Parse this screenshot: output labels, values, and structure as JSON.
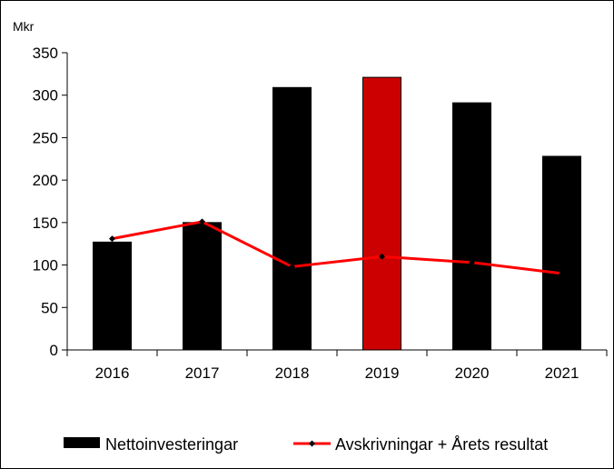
{
  "chart_data": {
    "type": "bar",
    "unit_label": "Mkr",
    "categories": [
      "2016",
      "2017",
      "2018",
      "2019",
      "2020",
      "2021"
    ],
    "ylim": [
      0,
      350
    ],
    "yticks": [
      0,
      50,
      100,
      150,
      200,
      250,
      300,
      350
    ],
    "grid": false,
    "legend_position": "bottom",
    "series": [
      {
        "name": "Nettoinvesteringar",
        "kind": "bar",
        "values": [
          127,
          150,
          309,
          321,
          291,
          228
        ],
        "color": "#000000",
        "highlight_index": 3,
        "highlight_color": "#cc0000"
      },
      {
        "name": "Avskrivningar + Årets resultat",
        "kind": "line",
        "values": [
          131,
          151,
          98,
          110,
          103,
          90
        ],
        "color": "#ff0000",
        "marker_color": "#000000"
      }
    ]
  }
}
